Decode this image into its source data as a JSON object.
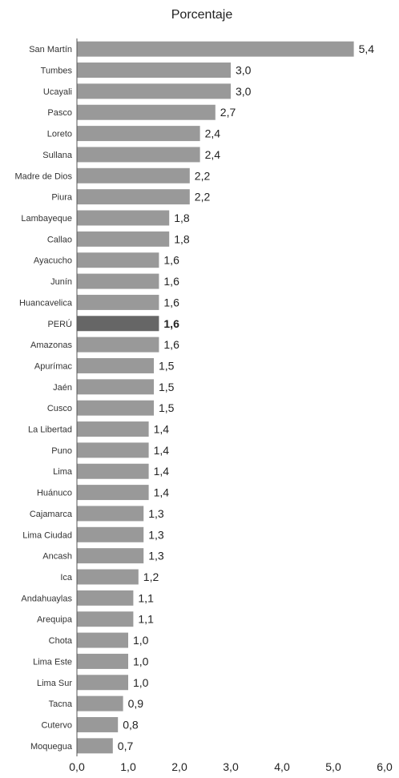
{
  "chart_data": {
    "type": "bar",
    "orientation": "horizontal",
    "title": "Porcentaje",
    "xlim": [
      0,
      6
    ],
    "xticks": [
      "0,0",
      "1,0",
      "2,0",
      "3,0",
      "4,0",
      "5,0",
      "6,0"
    ],
    "grid": false,
    "bar_color": "#999999",
    "highlight_color": "#666666",
    "highlight_category": "PERÚ",
    "categories": [
      "San Martín",
      "Tumbes",
      "Ucayali",
      "Pasco",
      "Loreto",
      "Sullana",
      "Madre de Dios",
      "Piura",
      "Lambayeque",
      "Callao",
      "Ayacucho",
      "Junín",
      "Huancavelica",
      "PERÚ",
      "Amazonas",
      "Apurímac",
      "Jaén",
      "Cusco",
      "La Libertad",
      "Puno",
      "Lima",
      "Huánuco",
      "Cajamarca",
      "Lima Ciudad",
      "Ancash",
      "Ica",
      "Andahuaylas",
      "Arequipa",
      "Chota",
      "Lima Este",
      "Lima Sur",
      "Tacna",
      "Cutervo",
      "Moquegua"
    ],
    "values": [
      5.4,
      3.0,
      3.0,
      2.7,
      2.4,
      2.4,
      2.2,
      2.2,
      1.8,
      1.8,
      1.6,
      1.6,
      1.6,
      1.6,
      1.6,
      1.5,
      1.5,
      1.5,
      1.4,
      1.4,
      1.4,
      1.4,
      1.3,
      1.3,
      1.3,
      1.2,
      1.1,
      1.1,
      1.0,
      1.0,
      1.0,
      0.9,
      0.8,
      0.7
    ],
    "value_labels": [
      "5,4",
      "3,0",
      "3,0",
      "2,7",
      "2,4",
      "2,4",
      "2,2",
      "2,2",
      "1,8",
      "1,8",
      "1,6",
      "1,6",
      "1,6",
      "1,6",
      "1,6",
      "1,5",
      "1,5",
      "1,5",
      "1,4",
      "1,4",
      "1,4",
      "1,4",
      "1,3",
      "1,3",
      "1,3",
      "1,2",
      "1,1",
      "1,1",
      "1,0",
      "1,0",
      "1,0",
      "0,9",
      "0,8",
      "0,7"
    ]
  }
}
